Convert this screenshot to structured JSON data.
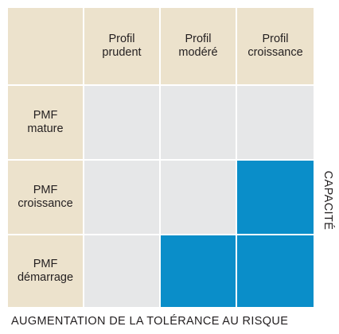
{
  "columns": [
    "Profil\nprudent",
    "Profil\nmodéré",
    "Profil\ncroissance"
  ],
  "rows": [
    {
      "label": "PMF\nmature",
      "cells": [
        "grey",
        "grey",
        "grey"
      ]
    },
    {
      "label": "PMF\ncroissance",
      "cells": [
        "grey",
        "grey",
        "blue"
      ]
    },
    {
      "label": "PMF\ndémarrage",
      "cells": [
        "grey",
        "blue",
        "blue"
      ]
    }
  ],
  "x_axis_label": "AUGMENTATION DE LA TOLÉRANCE AU RISQUE",
  "y_axis_label": "CAPACITÉ",
  "colors": {
    "header": "#ece2cc",
    "empty": "#e6e7e8",
    "highlight": "#0a8ec9"
  }
}
